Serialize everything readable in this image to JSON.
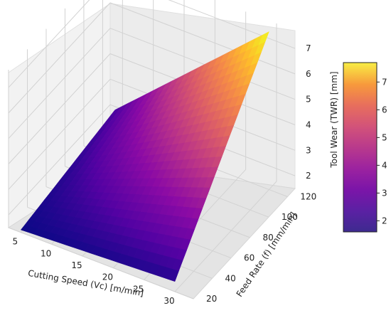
{
  "chart_data": {
    "type": "surface3d",
    "xlabel": "Cutting Speed (Vc) [m/min]",
    "ylabel": "Feed Rate (f) [mm/min]",
    "zlabel": "Tool Wear (TWR) [mm]",
    "x_ticks": [
      "5",
      "10",
      "15",
      "20",
      "25",
      "30"
    ],
    "y_ticks": [
      "20",
      "40",
      "60",
      "80",
      "100",
      "120"
    ],
    "z_ticks": [
      "2",
      "3",
      "4",
      "5",
      "6",
      "7"
    ],
    "colorbar_ticks": [
      "2",
      "3",
      "4",
      "5",
      "6",
      "7"
    ],
    "xlim": [
      3,
      33
    ],
    "ylim": [
      20,
      128
    ],
    "zlim": [
      1.5,
      7.7
    ],
    "colormap": "plasma",
    "grid": true,
    "surface_corners": [
      {
        "x": 5,
        "y": 20,
        "z": 1.6
      },
      {
        "x": 30,
        "y": 20,
        "z": 1.9
      },
      {
        "x": 5,
        "y": 120,
        "z": 2.3
      },
      {
        "x": 30,
        "y": 120,
        "z": 7.7
      }
    ]
  }
}
